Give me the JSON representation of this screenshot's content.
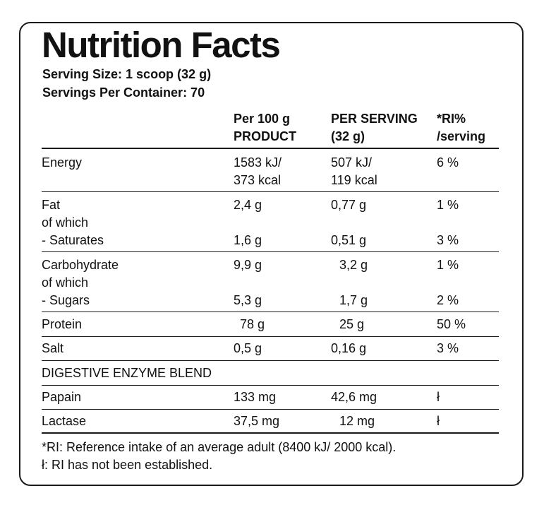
{
  "title": "Nutrition Facts",
  "serving_size": "Serving Size: 1 scoop (32 g)",
  "servings_per_container": "Servings Per Container: 70",
  "headers": {
    "per100_line1": "Per 100 g",
    "per100_line2": "PRODUCT",
    "serving_line1": "PER SERVING",
    "serving_line2": "(32 g)",
    "ri_line1": "*RI%",
    "ri_line2": "/serving"
  },
  "rows": {
    "energy": {
      "label": "Energy",
      "per100_line1": "1583 kJ/",
      "per100_line2": "373 kcal",
      "serving_line1": "507 kJ/",
      "serving_line2": "119 kcal",
      "ri": "6 %"
    },
    "fat": {
      "label": "Fat",
      "sub": "of which",
      "per100": "2,4 g",
      "serving": "0,77 g",
      "ri": "1 %"
    },
    "saturates": {
      "label": "- Saturates",
      "per100": "1,6 g",
      "serving": "0,51 g",
      "ri": "3 %"
    },
    "carbohydrate": {
      "label": "Carbohydrate",
      "sub": "of which",
      "per100": "9,9 g",
      "serving": "3,2 g",
      "ri": "1 %"
    },
    "sugars": {
      "label": "- Sugars",
      "per100": "5,3 g",
      "serving": "1,7 g",
      "ri": "2 %"
    },
    "protein": {
      "label": "Protein",
      "per100": "78 g",
      "serving": "25 g",
      "ri": "50 %"
    },
    "salt": {
      "label": "Salt",
      "per100": "0,5 g",
      "serving": "0,16 g",
      "ri": "3 %"
    }
  },
  "enzyme_heading": "DIGESTIVE ENZYME BLEND",
  "enzymes": {
    "papain": {
      "label": "Papain",
      "per100": "133 mg",
      "serving": "42,6 mg",
      "ri": "ł"
    },
    "lactase": {
      "label": "Lactase",
      "per100": "37,5 mg",
      "serving": "12 mg",
      "ri": "ł"
    }
  },
  "footnotes": {
    "ri_note": "*RI: Reference intake of an average adult (8400 kJ/ 2000 kcal).",
    "not_established": "ł: RI has not been established."
  }
}
